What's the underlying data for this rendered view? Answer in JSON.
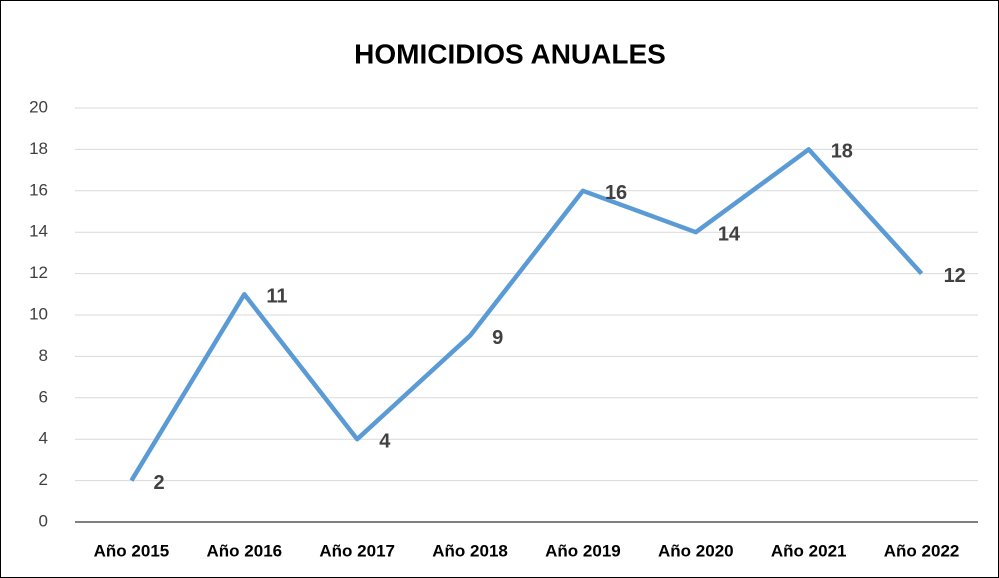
{
  "chart_data": {
    "type": "line",
    "title": "HOMICIDIOS ANUALES",
    "categories": [
      "Año 2015",
      "Año 2016",
      "Año 2017",
      "Año 2018",
      "Año 2019",
      "Año 2020",
      "Año 2021",
      "Año 2022"
    ],
    "values": [
      2,
      11,
      4,
      9,
      16,
      14,
      18,
      12
    ],
    "color": "#5b9bd5",
    "ylim": [
      0,
      20
    ],
    "yticks": [
      0,
      2,
      4,
      6,
      8,
      10,
      12,
      14,
      16,
      18,
      20
    ],
    "grid": true
  }
}
